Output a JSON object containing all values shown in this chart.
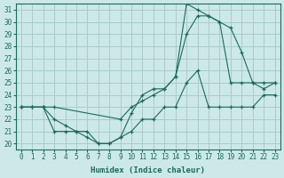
{
  "xlabel": "Humidex (Indice chaleur)",
  "background_color": "#cce8e8",
  "grid_color": "#aacccc",
  "line_color": "#1a6b5a",
  "xlim": [
    -0.5,
    23.5
  ],
  "ylim": [
    19.5,
    31.5
  ],
  "xticks": [
    0,
    1,
    2,
    3,
    4,
    5,
    6,
    7,
    8,
    9,
    10,
    11,
    12,
    13,
    14,
    15,
    16,
    17,
    18,
    19,
    20,
    21,
    22,
    23
  ],
  "yticks": [
    20,
    21,
    22,
    23,
    24,
    25,
    26,
    27,
    28,
    29,
    30,
    31
  ],
  "line1_x": [
    0,
    1,
    2,
    3,
    4,
    5,
    6,
    7,
    8,
    9,
    10,
    11,
    12,
    13,
    14,
    15,
    16,
    17,
    18,
    19,
    20,
    21,
    22,
    23
  ],
  "line1_y": [
    23,
    23,
    23,
    21,
    21,
    21,
    21,
    20,
    20,
    20.5,
    21,
    22,
    22,
    23,
    23,
    25,
    26,
    23,
    23,
    23,
    23,
    23,
    24,
    24
  ],
  "line2_x": [
    0,
    1,
    2,
    3,
    4,
    5,
    6,
    7,
    8,
    9,
    10,
    11,
    12,
    13,
    14,
    15,
    16,
    17,
    18,
    19,
    20,
    21,
    22,
    23
  ],
  "line2_y": [
    23,
    23,
    23,
    22,
    21.5,
    21,
    20.5,
    20,
    20,
    20.5,
    22.5,
    24,
    24.5,
    24.5,
    25.5,
    29,
    30.5,
    30.5,
    30,
    29.5,
    27.5,
    25,
    24.5,
    25
  ],
  "line3_x": [
    0,
    2,
    3,
    9,
    10,
    11,
    12,
    13,
    14,
    15,
    16,
    17,
    18,
    19,
    20,
    21,
    22,
    23
  ],
  "line3_y": [
    23,
    23,
    23,
    22,
    23,
    23.5,
    24,
    24.5,
    25.5,
    31.5,
    31,
    30.5,
    30,
    25,
    25,
    25,
    25,
    25
  ]
}
